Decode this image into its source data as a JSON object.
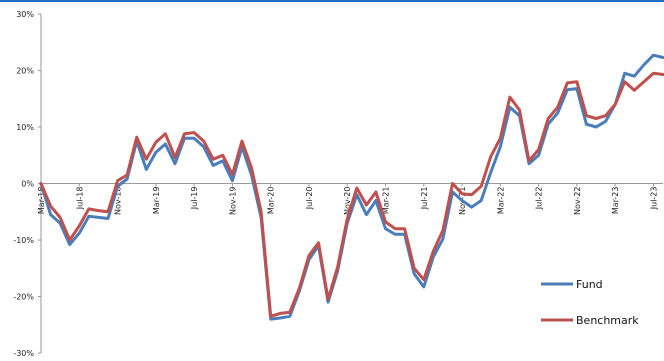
{
  "chart_data": {
    "type": "line",
    "title": "",
    "xlabel": "",
    "ylabel": "",
    "ylim": [
      -30,
      30
    ],
    "y_ticks": [
      "30%",
      "20%",
      "10%",
      "0%",
      "-10%",
      "-20%",
      "-30%"
    ],
    "y_tick_values": [
      30,
      20,
      10,
      0,
      -10,
      -20,
      -30
    ],
    "x_tick_labels": [
      "Mar-18",
      "Jul-18",
      "Nov-18",
      "Mar-19",
      "Jul-19",
      "Nov-19",
      "Mar-20",
      "Jul-20",
      "Nov-20",
      "Mar-21",
      "Jul-21",
      "Nov-21",
      "Mar-22",
      "Jul-22",
      "Nov-22",
      "Mar-23",
      "Jul-23"
    ],
    "x_start": "2018-03",
    "x_end": "2023-08",
    "grid": false,
    "legend": "bottom-right",
    "series": [
      {
        "name": "Fund",
        "color": "#4a7ebb",
        "values": [
          0.0,
          -5.5,
          -7.0,
          -10.8,
          -8.8,
          -5.8,
          -6.0,
          -6.2,
          -0.5,
          0.8,
          7.5,
          2.5,
          5.5,
          7.0,
          3.5,
          8.0,
          8.0,
          6.5,
          3.2,
          4.0,
          0.5,
          6.5,
          1.5,
          -6.0,
          -24.0,
          -23.8,
          -23.5,
          -19.0,
          -13.5,
          -11.0,
          -21.0,
          -15.5,
          -7.0,
          -2.0,
          -5.5,
          -3.0,
          -8.0,
          -9.0,
          -9.0,
          -16.0,
          -18.3,
          -13.0,
          -9.8,
          -1.5,
          -3.0,
          -4.2,
          -3.0,
          2.0,
          6.5,
          13.5,
          12.0,
          3.5,
          5.0,
          10.5,
          12.5,
          16.6,
          16.8,
          10.5,
          10.0,
          11.0,
          14.0,
          19.5,
          19.0,
          21.0,
          22.7,
          22.3
        ]
      },
      {
        "name": "Benchmark",
        "color": "#c0504d",
        "values": [
          0.0,
          -4.0,
          -6.0,
          -10.0,
          -7.5,
          -4.5,
          -4.8,
          -5.0,
          0.5,
          1.5,
          8.2,
          4.3,
          7.3,
          8.8,
          4.6,
          8.8,
          9.0,
          7.5,
          4.3,
          5.0,
          1.6,
          7.5,
          2.8,
          -5.0,
          -23.5,
          -23.0,
          -22.8,
          -18.5,
          -12.8,
          -10.5,
          -20.5,
          -14.8,
          -6.3,
          -0.8,
          -3.8,
          -1.5,
          -6.8,
          -8.0,
          -8.0,
          -15.0,
          -17.0,
          -12.0,
          -8.3,
          0.0,
          -1.8,
          -2.0,
          -0.5,
          4.8,
          8.0,
          15.3,
          13.0,
          4.0,
          6.0,
          11.5,
          13.5,
          17.8,
          18.0,
          12.0,
          11.5,
          12.0,
          14.0,
          18.0,
          16.5,
          18.0,
          19.5,
          19.3
        ]
      }
    ]
  }
}
